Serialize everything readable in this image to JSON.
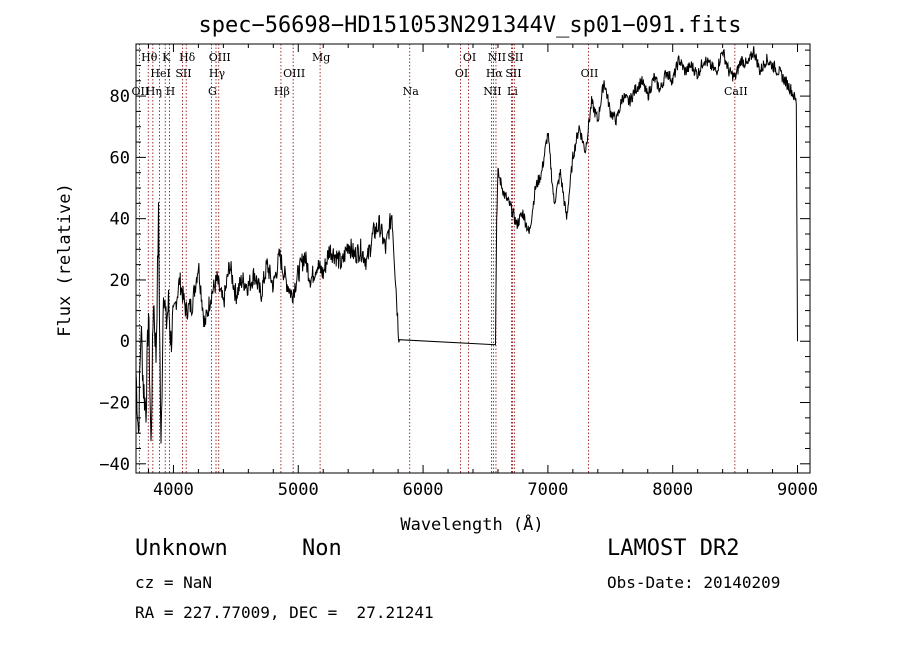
{
  "chart_data": {
    "type": "line",
    "title": "spec−56698−HD151053N291344V_sp01−091.fits",
    "xlabel": "Wavelength (Å)",
    "ylabel": "Flux (relative)",
    "xlim": [
      3700,
      9100
    ],
    "ylim": [
      -43,
      97
    ],
    "xticks": [
      4000,
      5000,
      6000,
      7000,
      8000,
      9000
    ],
    "xtick_labels": [
      "4000",
      "5000",
      "6000",
      "7000",
      "8000",
      "9000"
    ],
    "yticks": [
      -40,
      -20,
      0,
      20,
      40,
      60,
      80
    ],
    "ytick_labels": [
      "−40",
      "−20",
      "0",
      "20",
      "40",
      "60",
      "80"
    ],
    "grid": false,
    "series_color": "#000000",
    "line_color": "#8b0000",
    "series": [
      {
        "x": [
          3700,
          3720,
          3740,
          3760,
          3780,
          3800,
          3820,
          3840,
          3860,
          3880,
          3900,
          3920,
          3940,
          3960,
          3980,
          4000,
          4050,
          4100,
          4150,
          4200,
          4250,
          4300,
          4350,
          4400,
          4450,
          4500,
          4550,
          4600,
          4650,
          4700,
          4750,
          4800,
          4850,
          4900,
          4950,
          5000,
          5050,
          5100,
          5150,
          5200,
          5250,
          5300,
          5350,
          5400,
          5450,
          5500,
          5550,
          5600,
          5650,
          5700,
          5750,
          5780,
          5800,
          5810,
          6580,
          6590,
          6600,
          6650,
          6700,
          6750,
          6800,
          6850,
          6900,
          6950,
          7000,
          7050,
          7100,
          7150,
          7200,
          7250,
          7300,
          7350,
          7400,
          7450,
          7500,
          7550,
          7600,
          7650,
          7700,
          7750,
          7800,
          7850,
          7900,
          7950,
          8000,
          8050,
          8100,
          8150,
          8200,
          8250,
          8300,
          8350,
          8400,
          8450,
          8500,
          8550,
          8600,
          8650,
          8700,
          8750,
          8800,
          8850,
          8900,
          8950,
          8990,
          9000
        ],
        "y": [
          -10,
          -30,
          5,
          -15,
          -22,
          10,
          -35,
          15,
          -5,
          40,
          -37,
          20,
          5,
          12,
          0,
          8,
          20,
          10,
          12,
          25,
          5,
          15,
          20,
          12,
          25,
          15,
          20,
          18,
          22,
          15,
          25,
          18,
          28,
          20,
          15,
          22,
          28,
          20,
          25,
          22,
          30,
          28,
          25,
          32,
          28,
          30,
          26,
          35,
          38,
          30,
          42,
          20,
          5,
          0.5,
          0.5,
          40,
          55,
          48,
          44,
          38,
          42,
          35,
          50,
          55,
          68,
          45,
          55,
          40,
          60,
          70,
          62,
          78,
          72,
          85,
          75,
          72,
          80,
          78,
          82,
          85,
          80,
          86,
          82,
          88,
          85,
          92,
          88,
          90,
          87,
          92,
          90,
          88,
          95,
          88,
          86,
          92,
          90,
          95,
          88,
          92,
          90,
          88,
          85,
          82,
          78,
          0
        ]
      }
    ],
    "lines": [
      {
        "label": "Hθ",
        "x": 3798,
        "row": 0
      },
      {
        "label": "K",
        "x": 3934,
        "row": 0
      },
      {
        "label": "Hδ",
        "x": 4102,
        "row": 0
      },
      {
        "label": "OIII",
        "x": 4363,
        "row": 0
      },
      {
        "label": "Mg",
        "x": 5175,
        "row": 0
      },
      {
        "label": "OI",
        "x": 6364,
        "row": 0
      },
      {
        "label": "NII",
        "x": 6584,
        "row": 0
      },
      {
        "label": "SII",
        "x": 6731,
        "row": 0
      },
      {
        "label": "HeI",
        "x": 3889,
        "row": 1
      },
      {
        "label": "SII",
        "x": 4072,
        "row": 1
      },
      {
        "label": "Hγ",
        "x": 4341,
        "row": 1
      },
      {
        "label": "OIII",
        "x": 4959,
        "row": 1
      },
      {
        "label": "OI",
        "x": 6300,
        "row": 1
      },
      {
        "label": "Hα",
        "x": 6563,
        "row": 1
      },
      {
        "label": "SII",
        "x": 6716,
        "row": 1
      },
      {
        "label": "OII",
        "x": 7325,
        "row": 1
      },
      {
        "label": "OII",
        "x": 3727,
        "row": 2
      },
      {
        "label": "Hη",
        "x": 3835,
        "row": 2
      },
      {
        "label": "H",
        "x": 3968,
        "row": 2
      },
      {
        "label": "G",
        "x": 4304,
        "row": 2
      },
      {
        "label": "Hβ",
        "x": 4861,
        "row": 2
      },
      {
        "label": "Na",
        "x": 5893,
        "row": 2
      },
      {
        "label": "NII",
        "x": 6548,
        "row": 2
      },
      {
        "label": "Li",
        "x": 6708,
        "row": 2
      },
      {
        "label": "CaII",
        "x": 8498,
        "row": 2
      }
    ]
  },
  "footer": {
    "object_class": "Unknown",
    "subclass": "Non",
    "survey": "LAMOST DR2",
    "cz": "cz = NaN",
    "obs_date": "Obs-Date: 20140209",
    "coords": "RA = 227.77009, DEC =  27.21241"
  }
}
